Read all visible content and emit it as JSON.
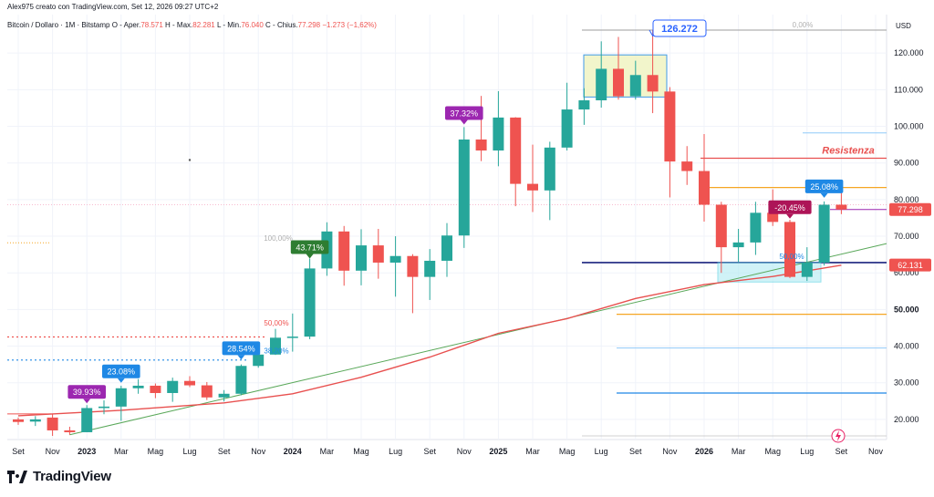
{
  "header": {
    "author_line": "Alex975 creato con TradingView.com, Set 12, 2026 09:27 UTC+2",
    "symbol": "Bitcoin / Dollaro · 1M · Bitstamp",
    "open_label": "O",
    "open_text": "Aper.",
    "open_value": "78.571",
    "high_label": "H",
    "high_text": "Max.",
    "high_value": "82.281",
    "low_label": "L",
    "low_text": "Min.",
    "low_value": "76.040",
    "close_label": "C",
    "close_text": "Chius.",
    "close_value": "77.298",
    "change": "−1.273 (−1,62%)"
  },
  "axis": {
    "currency": "USD"
  },
  "footer": {
    "brand": "TradingView"
  },
  "colors": {
    "up": "#26a69a",
    "down": "#ef5350",
    "grid": "#f0f3fa",
    "ma": "#e8504f",
    "trend": "#5aa85a"
  },
  "chart_data": {
    "type": "candlestick",
    "title": "Bitcoin / Dollaro · 1M · Bitstamp",
    "y_scale": "linear",
    "ylim": [
      14500,
      130500
    ],
    "y_ticks": [
      20000,
      30000,
      40000,
      50000,
      60000,
      70000,
      80000,
      90000,
      100000,
      110000,
      120000
    ],
    "y_tick_labels": [
      "20.000",
      "30.000",
      "40.000",
      "50.000",
      "60.000",
      "70.000",
      "80.000",
      "90.000",
      "100.000",
      "110.000",
      "120.000"
    ],
    "x_labels": [
      "Set",
      "Nov",
      "2023",
      "Mar",
      "Mag",
      "Lug",
      "Set",
      "Nov",
      "2024",
      "Mar",
      "Mag",
      "Lug",
      "Set",
      "Nov",
      "2025",
      "Mar",
      "Mag",
      "Lug",
      "Set",
      "Nov",
      "2026",
      "Mar",
      "Mag",
      "Lug",
      "Set",
      "Nov"
    ],
    "x_label_start_month": 0,
    "months_total": 52,
    "candles": [
      {
        "o": 20000,
        "h": 20500,
        "l": 18500,
        "c": 19300
      },
      {
        "o": 19400,
        "h": 20900,
        "l": 18200,
        "c": 20000
      },
      {
        "o": 20500,
        "h": 21500,
        "l": 15500,
        "c": 17000
      },
      {
        "o": 17000,
        "h": 18000,
        "l": 15800,
        "c": 16500
      },
      {
        "o": 16500,
        "h": 23900,
        "l": 16500,
        "c": 23100
      },
      {
        "o": 23100,
        "h": 25200,
        "l": 21400,
        "c": 23500
      },
      {
        "o": 23500,
        "h": 29200,
        "l": 19600,
        "c": 28500
      },
      {
        "o": 28500,
        "h": 31000,
        "l": 27000,
        "c": 29200
      },
      {
        "o": 29200,
        "h": 29800,
        "l": 25800,
        "c": 27200
      },
      {
        "o": 27200,
        "h": 31400,
        "l": 24800,
        "c": 30500
      },
      {
        "o": 30500,
        "h": 31800,
        "l": 28800,
        "c": 29300
      },
      {
        "o": 29300,
        "h": 30200,
        "l": 25300,
        "c": 26000
      },
      {
        "o": 26000,
        "h": 28000,
        "l": 24900,
        "c": 27000
      },
      {
        "o": 27000,
        "h": 35000,
        "l": 26600,
        "c": 34600
      },
      {
        "o": 34600,
        "h": 38400,
        "l": 34100,
        "c": 37700
      },
      {
        "o": 37700,
        "h": 44700,
        "l": 37600,
        "c": 42300
      },
      {
        "o": 42300,
        "h": 48900,
        "l": 38500,
        "c": 42600
      },
      {
        "o": 42600,
        "h": 63900,
        "l": 41900,
        "c": 61200
      },
      {
        "o": 61200,
        "h": 73800,
        "l": 59200,
        "c": 71300
      },
      {
        "o": 71300,
        "h": 72800,
        "l": 56500,
        "c": 60600
      },
      {
        "o": 60600,
        "h": 71900,
        "l": 56600,
        "c": 67500
      },
      {
        "o": 67500,
        "h": 72000,
        "l": 58400,
        "c": 62800
      },
      {
        "o": 62800,
        "h": 70000,
        "l": 53500,
        "c": 64600
      },
      {
        "o": 64600,
        "h": 65100,
        "l": 49000,
        "c": 58900
      },
      {
        "o": 58900,
        "h": 66500,
        "l": 52600,
        "c": 63300
      },
      {
        "o": 63300,
        "h": 73600,
        "l": 58900,
        "c": 70200
      },
      {
        "o": 70200,
        "h": 99800,
        "l": 66800,
        "c": 96400
      },
      {
        "o": 96400,
        "h": 108300,
        "l": 90500,
        "c": 93400
      },
      {
        "o": 93400,
        "h": 109600,
        "l": 89100,
        "c": 102400
      },
      {
        "o": 102400,
        "h": 102500,
        "l": 78200,
        "c": 84300
      },
      {
        "o": 84300,
        "h": 95000,
        "l": 76600,
        "c": 82500
      },
      {
        "o": 82500,
        "h": 95800,
        "l": 74400,
        "c": 94200
      },
      {
        "o": 94200,
        "h": 111900,
        "l": 93400,
        "c": 104600
      },
      {
        "o": 104600,
        "h": 110400,
        "l": 100400,
        "c": 107100
      },
      {
        "o": 107100,
        "h": 123200,
        "l": 105100,
        "c": 115700
      },
      {
        "o": 115700,
        "h": 124400,
        "l": 107300,
        "c": 108200
      },
      {
        "o": 108200,
        "h": 117900,
        "l": 107300,
        "c": 114000
      },
      {
        "o": 114000,
        "h": 126300,
        "l": 103600,
        "c": 109500
      },
      {
        "o": 109500,
        "h": 110700,
        "l": 80600,
        "c": 90400
      },
      {
        "o": 90400,
        "h": 94600,
        "l": 84000,
        "c": 87800
      },
      {
        "o": 87800,
        "h": 97900,
        "l": 74000,
        "c": 78600
      },
      {
        "o": 78600,
        "h": 79400,
        "l": 60000,
        "c": 67000
      },
      {
        "o": 67000,
        "h": 72000,
        "l": 63000,
        "c": 68300
      },
      {
        "o": 68300,
        "h": 79400,
        "l": 64900,
        "c": 76400
      },
      {
        "o": 76400,
        "h": 82800,
        "l": 72800,
        "c": 73900
      },
      {
        "o": 73900,
        "h": 74500,
        "l": 58600,
        "c": 58900
      },
      {
        "o": 58900,
        "h": 67000,
        "l": 57800,
        "c": 62800
      },
      {
        "o": 62800,
        "h": 79500,
        "l": 62000,
        "c": 78600
      },
      {
        "o": 78600,
        "h": 82281,
        "l": 76040,
        "c": 77298
      }
    ],
    "annotations": [
      {
        "text": "126.272",
        "type": "price-callout",
        "color": "#2962ff"
      },
      {
        "text": "0,00%",
        "type": "fib-level"
      },
      {
        "text": "100,00%",
        "type": "fib-level"
      },
      {
        "text": "50,00%",
        "type": "fib-level"
      },
      {
        "text": "38,20%",
        "type": "fib-level"
      },
      {
        "text": "50,00%",
        "type": "fib-level"
      },
      {
        "text": "Resistenza",
        "type": "text-label",
        "color": "#e8504f"
      },
      {
        "text": "39.93%",
        "type": "badge",
        "color": "#9c27b0"
      },
      {
        "text": "23.08%",
        "type": "badge",
        "color": "#1e88e5"
      },
      {
        "text": "28.54%",
        "type": "badge",
        "color": "#1e88e5"
      },
      {
        "text": "43.71%",
        "type": "badge",
        "color": "#2e7d32"
      },
      {
        "text": "37.32%",
        "type": "badge",
        "color": "#9c27b0"
      },
      {
        "text": "-20.45%",
        "type": "badge",
        "color": "#ad1457"
      },
      {
        "text": "25.08%",
        "type": "badge",
        "color": "#1e88e5"
      }
    ],
    "price_tags": [
      {
        "text": "77.298",
        "color": "#ef5350"
      },
      {
        "text": "62.131",
        "color": "#ef5350"
      }
    ]
  }
}
